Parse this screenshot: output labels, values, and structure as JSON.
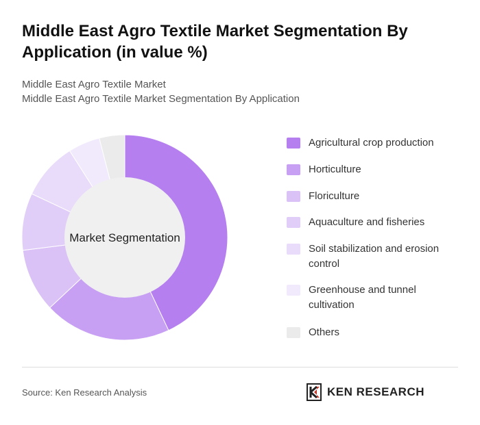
{
  "header": {
    "title": "Middle East Agro Textile Market Segmentation By Application (in value %)",
    "subtitle_line1": "Middle East Agro Textile Market",
    "subtitle_line2": "Middle East Agro Textile Market Segmentation By Application"
  },
  "chart_data": {
    "type": "pie",
    "center_label": "Market Segmentation",
    "categories": [
      "Agricultural crop production",
      "Horticulture",
      "Floriculture",
      "Aquaculture and fisheries",
      "Soil stabilization and erosion control",
      "Greenhouse and tunnel cultivation",
      "Others"
    ],
    "values": [
      43,
      20,
      10,
      9,
      9,
      5,
      4
    ],
    "colors": [
      "#b57ff0",
      "#c7a0f3",
      "#dac2f7",
      "#e0cdf8",
      "#e9dbfa",
      "#f1eafc",
      "#ebebeb"
    ],
    "legend_placement": "right"
  },
  "footer": {
    "source": "Source: Ken Research Analysis",
    "brand": "KEN RESEARCH"
  }
}
